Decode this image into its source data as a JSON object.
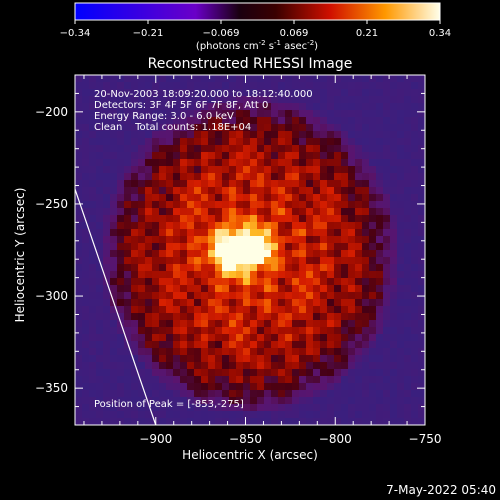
{
  "colorbar": {
    "ticks": [
      "-0.34",
      "-0.21",
      "-0.069",
      "0.069",
      "0.21",
      "0.34"
    ],
    "units_prefix": "(photons cm",
    "units_exp1": "-2",
    "units_mid": " s",
    "units_exp2": "-1",
    "units_asec": " asec",
    "units_exp3": "-2",
    "units_suffix": ")"
  },
  "title": "Reconstructed RHESSI Image",
  "info": {
    "line1": "20-Nov-2003 18:09:20.000 to 18:12:40.000",
    "line2": "Detectors: 3F 4F 5F 6F 7F 8F, Att 0",
    "line3": "Energy Range: 3.0 - 6.0 keV",
    "line4": "Clean    Total counts: 1.18E+04",
    "peak": "Position of Peak = [-853,-275]"
  },
  "footer": {
    "timestamp": "7-May-2022 05:40"
  },
  "chart_data": {
    "type": "heatmap",
    "title": "Reconstructed RHESSI Image",
    "xlabel": "Heliocentric X (arcsec)",
    "ylabel": "Heliocentric Y (arcsec)",
    "xlim": [
      -945,
      -750
    ],
    "ylim": [
      -370,
      -180
    ],
    "x_ticks": [
      -900,
      -850,
      -800,
      -750
    ],
    "y_ticks": [
      -200,
      -250,
      -300,
      -350
    ],
    "x_tick_labels": [
      "−900",
      "−850",
      "−800",
      "−750"
    ],
    "y_tick_labels": [
      "−200",
      "−250",
      "−300",
      "−350"
    ],
    "zlim": [
      -0.34,
      0.34
    ],
    "colormap": "RHESSI-style (blue to white)",
    "peak": {
      "x": -853,
      "y": -275,
      "value": 0.34
    },
    "limb_line": {
      "x": [
        -945,
        -900
      ],
      "y": [
        -242,
        -370
      ]
    },
    "colors": {
      "background": "#000000",
      "text": "#ffffff",
      "low": "#4a2aa0",
      "high": "#ffffe6"
    }
  }
}
